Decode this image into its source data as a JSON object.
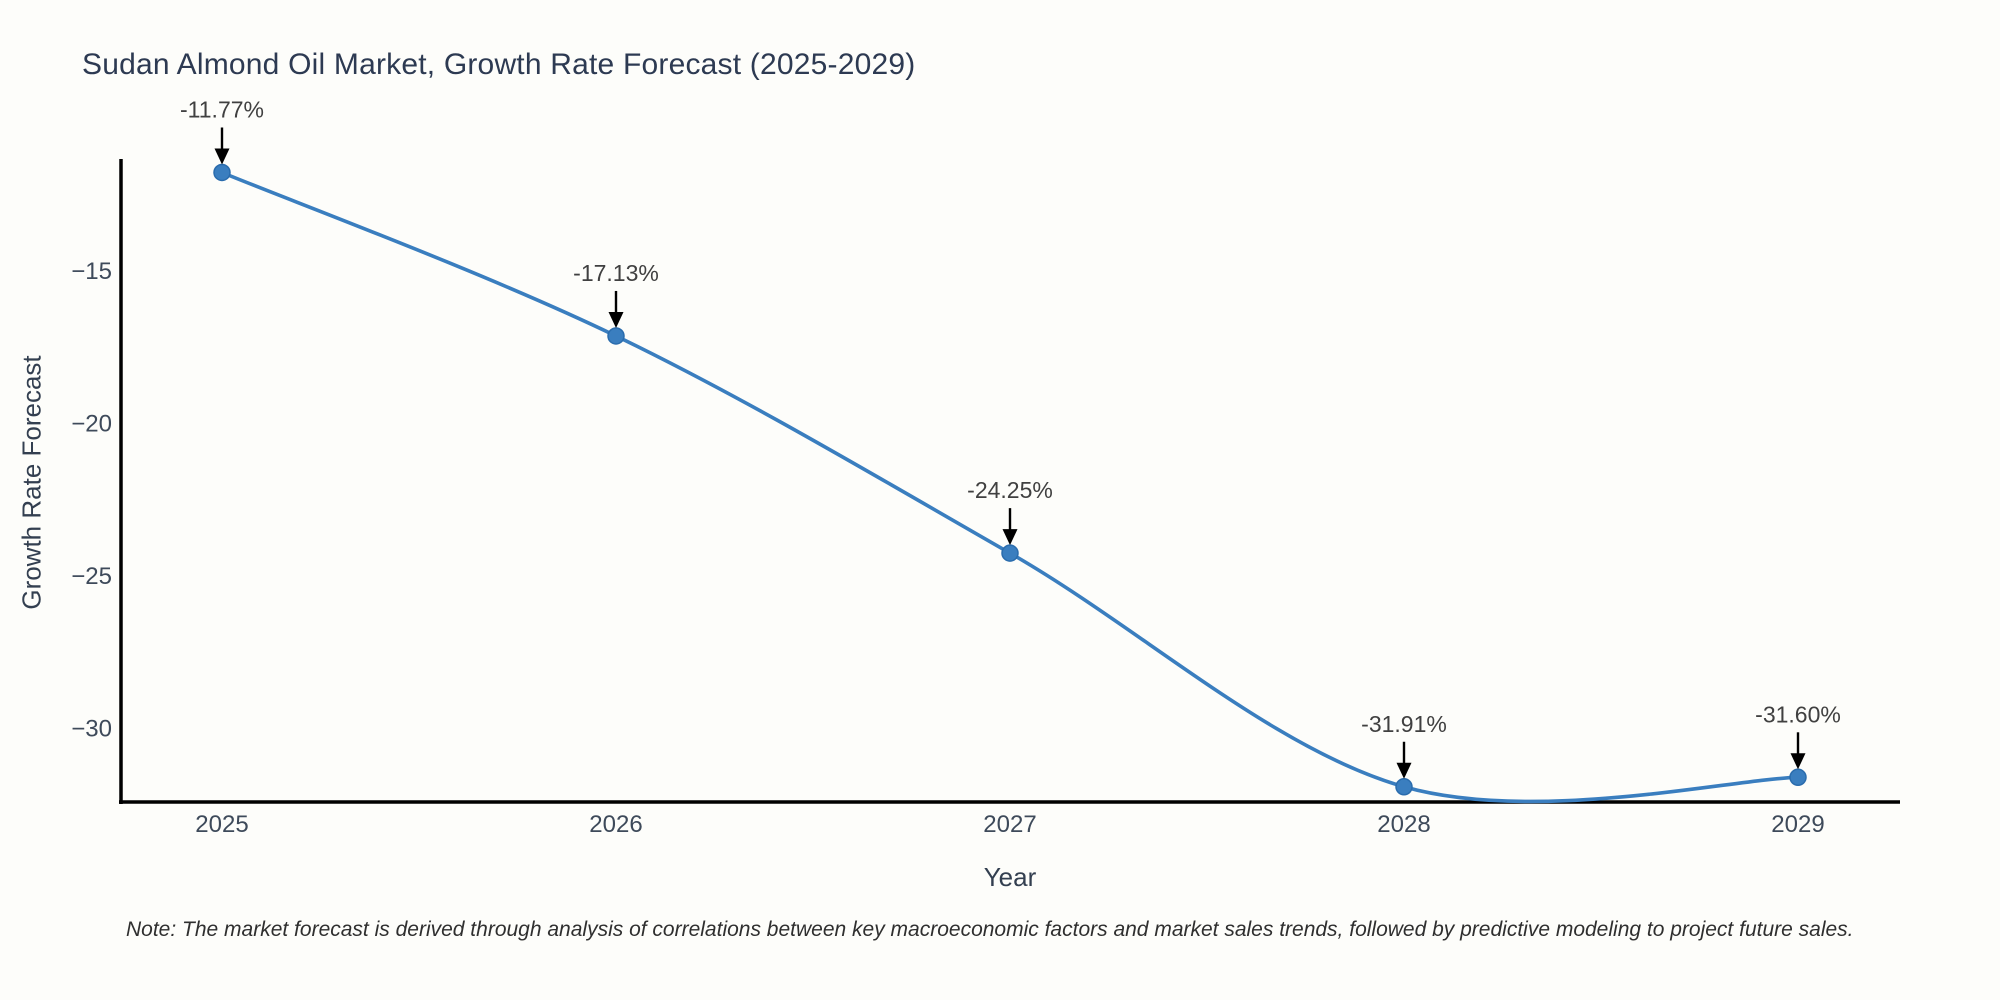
{
  "header": {
    "title": "Sudan Almond Oil Market, Growth Rate Forecast (2025-2029)"
  },
  "footer": {
    "note": "Note: The market forecast is derived through analysis of correlations between key macroeconomic factors and market sales trends, followed by predictive modeling to project future sales."
  },
  "chart_data": {
    "type": "line",
    "title": "Sudan Almond Oil Market, Growth Rate Forecast (2025-2029)",
    "xlabel": "Year",
    "ylabel": "Growth Rate Forecast",
    "categories": [
      "2025",
      "2026",
      "2027",
      "2028",
      "2029"
    ],
    "series": [
      {
        "name": "Growth Rate Forecast",
        "values": [
          -11.77,
          -17.13,
          -24.25,
          -31.91,
          -31.6
        ]
      }
    ],
    "point_labels": [
      "-11.77%",
      "-17.13%",
      "-24.25%",
      "-31.91%",
      "-31.60%"
    ],
    "ytick_values": [
      -15,
      -20,
      -25,
      -30
    ],
    "ytick_labels": [
      "−15",
      "−20",
      "−25",
      "−30"
    ],
    "ylim": [
      -32.4,
      -11.4
    ],
    "grid": false,
    "legend_position": "none",
    "line_shape": "spline",
    "annotation_arrows": true,
    "colors": {
      "line": "#3a7ebf",
      "marker_fill": "#3a7ebf",
      "marker_edge": "#2a6cad",
      "axis": "#000000",
      "title_text": "#2d3a52",
      "tick_text": "#3e4a5a",
      "annotation_text": "#404040",
      "arrow": "#000000",
      "background": "#fdfdfa"
    }
  }
}
